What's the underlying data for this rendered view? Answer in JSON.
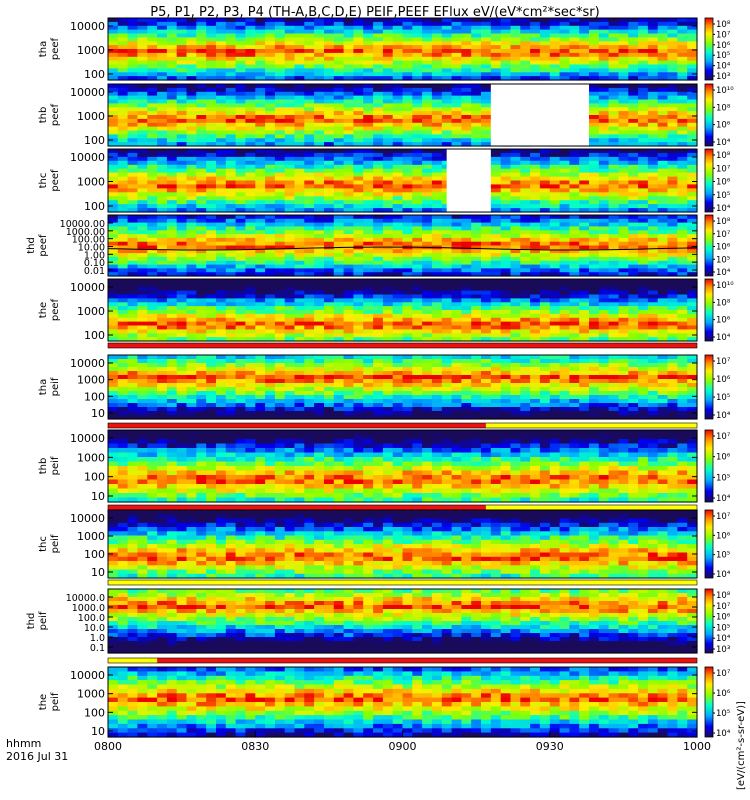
{
  "title": "P5, P1, P2, P3, P4 (TH-A,B,C,D,E) PEIF,PEEF EFlux eV/(eV*cm²*sec*sr)",
  "footer": {
    "time_label": "hhmm",
    "date_label": "2016 Jul 31"
  },
  "colors": {
    "flag_red": "#ee1111",
    "flag_yellow": "#ffff00",
    "gap_fill": "#ffffff",
    "trace": "#000000"
  },
  "chart_data": {
    "type": "heatmap",
    "x_axis": {
      "range": [
        "0800",
        "1000"
      ],
      "ticks": [
        "0800",
        "0830",
        "0900",
        "0930",
        "1000"
      ]
    },
    "colorbar_title": "[eV/(cm²-s-sr-eV)]",
    "panels": [
      {
        "probe": "tha",
        "species": "peef",
        "ylabel": [
          "tha",
          "peef"
        ],
        "yticks": [
          "10000",
          "1000",
          "100"
        ],
        "colorbar": [
          "10⁸",
          "10⁷",
          "10⁶",
          "10⁵",
          "10⁴",
          "10³"
        ],
        "enhancement_center": 0.45,
        "data_gaps": [],
        "trace": false,
        "flag_bar": null
      },
      {
        "probe": "thb",
        "species": "peef",
        "ylabel": [
          "thb",
          "peef"
        ],
        "yticks": [
          "10000",
          "1000",
          "100"
        ],
        "colorbar": [
          "10¹⁰",
          "10⁸",
          "10⁶",
          "10⁴"
        ],
        "enhancement_center": 0.42,
        "data_gaps": [
          [
            "0918",
            "0938"
          ]
        ],
        "trace": false,
        "flag_bar": null
      },
      {
        "probe": "thc",
        "species": "peef",
        "ylabel": [
          "thc",
          "peef"
        ],
        "yticks": [
          "10000",
          "1000",
          "100"
        ],
        "colorbar": [
          "10⁸",
          "10⁷",
          "10⁶",
          "10⁵",
          "10⁴"
        ],
        "enhancement_center": 0.42,
        "data_gaps": [
          [
            "0909",
            "0918"
          ]
        ],
        "trace": false,
        "flag_bar": null
      },
      {
        "probe": "thd",
        "species": "peef",
        "ylabel": [
          "thd",
          "peef"
        ],
        "yticks": [
          "10000.00",
          "1000.00",
          "100.00",
          "10.00",
          "1.00",
          "0.10",
          "0.01"
        ],
        "colorbar": [
          "10⁸",
          "10⁷",
          "10⁶",
          "10⁵",
          "10⁴"
        ],
        "enhancement_center": 0.5,
        "data_gaps": [],
        "trace": true,
        "flag_bar": null
      },
      {
        "probe": "the",
        "species": "peef",
        "ylabel": [
          "the",
          "peef"
        ],
        "yticks": [
          "10000",
          "1000",
          "100"
        ],
        "colorbar": [
          "10¹⁰",
          "10⁸",
          "10⁶",
          "10⁴"
        ],
        "enhancement_center": 0.25,
        "data_gaps": [],
        "trace": false,
        "flag_bar": {
          "red": [
            [
              "0800",
              "1000"
            ]
          ]
        }
      },
      {
        "probe": "tha",
        "species": "peif",
        "ylabel": [
          "tha",
          "peif"
        ],
        "yticks": [
          "10000",
          "1000",
          "100",
          "10"
        ],
        "colorbar": [
          "10⁷",
          "10⁶",
          "10⁵",
          "10⁴"
        ],
        "enhancement_center": 0.65,
        "data_gaps": [],
        "trace": false,
        "flag_bar": {
          "red": [
            [
              "0800",
              "0917"
            ]
          ],
          "yellow": [
            [
              "0917",
              "1000"
            ]
          ]
        }
      },
      {
        "probe": "thb",
        "species": "peif",
        "ylabel": [
          "thb",
          "peif"
        ],
        "yticks": [
          "10000",
          "1000",
          "100",
          "10"
        ],
        "colorbar": [
          "10⁷",
          "10⁶",
          "10⁵",
          "10⁴"
        ],
        "enhancement_center": 0.3,
        "data_gaps": [],
        "trace": false,
        "flag_bar": {
          "red": [
            [
              "0800",
              "0917"
            ]
          ],
          "yellow": [
            [
              "0917",
              "1000"
            ]
          ]
        }
      },
      {
        "probe": "thc",
        "species": "peif",
        "ylabel": [
          "thc",
          "peif"
        ],
        "yticks": [
          "10000",
          "1000",
          "100",
          "10"
        ],
        "colorbar": [
          "10⁷",
          "10⁶",
          "10⁵",
          "10⁴"
        ],
        "enhancement_center": 0.3,
        "data_gaps": [],
        "trace": false,
        "flag_bar": {
          "yellow": [
            [
              "0800",
              "1000"
            ]
          ]
        }
      },
      {
        "probe": "thd",
        "species": "peif",
        "ylabel": [
          "thd",
          "peif"
        ],
        "yticks": [
          "10000.0",
          "1000.0",
          "100.0",
          "10.0",
          "1.0",
          "0.1"
        ],
        "colorbar": [
          "10⁸",
          "10⁷",
          "10⁶",
          "10⁵",
          "10⁴",
          "10³"
        ],
        "enhancement_center": 0.75,
        "data_gaps": [],
        "trace": false,
        "flag_bar": {
          "yellow": [
            [
              "0800",
              "0810"
            ]
          ],
          "red": [
            [
              "0810",
              "1000"
            ]
          ]
        }
      },
      {
        "probe": "the",
        "species": "peif",
        "ylabel": [
          "the",
          "peif"
        ],
        "yticks": [
          "10000",
          "1000",
          "100",
          "10"
        ],
        "colorbar": [
          "10⁷",
          "10⁶",
          "10⁵",
          "10⁴"
        ],
        "enhancement_center": 0.55,
        "data_gaps": [],
        "trace": false,
        "flag_bar": null
      }
    ]
  }
}
